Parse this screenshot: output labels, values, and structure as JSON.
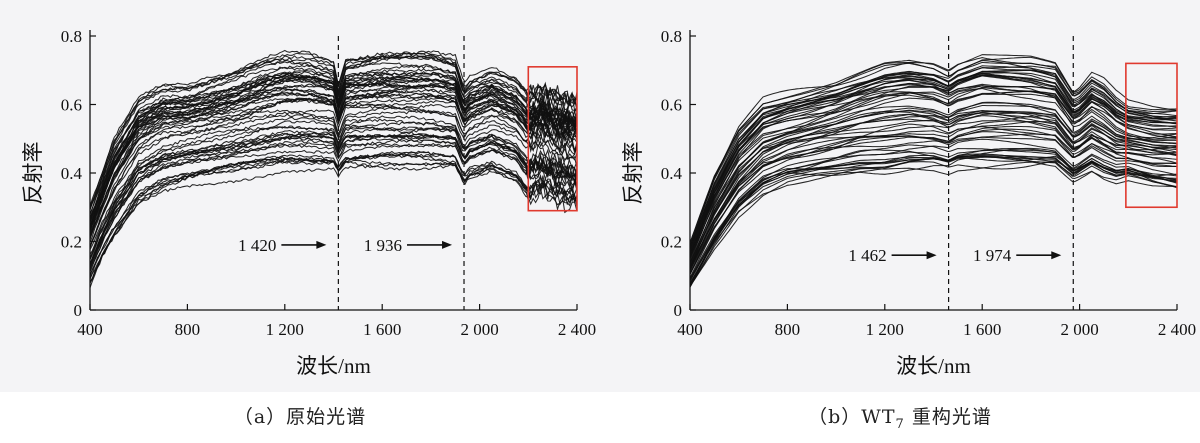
{
  "chart_data": [
    {
      "type": "line",
      "caption": "（a）原始光谱",
      "xlabel": "波长/nm",
      "ylabel": "反射率",
      "xlim": [
        400,
        2400
      ],
      "ylim": [
        0,
        0.8
      ],
      "xticks": [
        400,
        800,
        1200,
        1600,
        2000,
        2400
      ],
      "xtick_labels": [
        "400",
        "800",
        "1 200",
        "1 600",
        "2 000",
        "2 400"
      ],
      "yticks": [
        0,
        0.2,
        0.4,
        0.6,
        0.8
      ],
      "ytick_labels": [
        "0",
        "0.2",
        "0.4",
        "0.6",
        "0.8"
      ],
      "vlines": [
        1420,
        1936
      ],
      "annotations": [
        {
          "text": "1 420",
          "x": 1420,
          "y": 0.19
        },
        {
          "text": "1 936",
          "x": 1936,
          "y": 0.19
        }
      ],
      "highlight_box": {
        "x": [
          2200,
          2400
        ],
        "y": [
          0.29,
          0.71
        ],
        "color": "#e03a2f"
      },
      "series_count": 60,
      "envelope": {
        "x": [
          400,
          450,
          500,
          600,
          700,
          800,
          900,
          1000,
          1100,
          1200,
          1300,
          1400,
          1420,
          1450,
          1600,
          1800,
          1900,
          1936,
          1960,
          2050,
          2150,
          2200,
          2250,
          2300,
          2400
        ],
        "upper": [
          0.3,
          0.4,
          0.5,
          0.62,
          0.66,
          0.66,
          0.68,
          0.7,
          0.73,
          0.75,
          0.75,
          0.73,
          0.66,
          0.74,
          0.76,
          0.76,
          0.74,
          0.66,
          0.68,
          0.71,
          0.68,
          0.64,
          0.66,
          0.64,
          0.62
        ],
        "lower": [
          0.06,
          0.14,
          0.2,
          0.3,
          0.34,
          0.36,
          0.37,
          0.38,
          0.39,
          0.4,
          0.4,
          0.4,
          0.38,
          0.4,
          0.4,
          0.4,
          0.4,
          0.35,
          0.37,
          0.39,
          0.36,
          0.31,
          0.33,
          0.31,
          0.29
        ]
      },
      "noise": 0.008,
      "noise_start": 2200
    },
    {
      "type": "line",
      "caption": "（b）WT7 重构光谱",
      "xlabel": "波长/nm",
      "ylabel": "反射率",
      "xlim": [
        400,
        2400
      ],
      "ylim": [
        0,
        0.8
      ],
      "xticks": [
        400,
        800,
        1200,
        1600,
        2000,
        2400
      ],
      "xtick_labels": [
        "400",
        "800",
        "1 200",
        "1 600",
        "2 000",
        "2 400"
      ],
      "yticks": [
        0,
        0.2,
        0.4,
        0.6,
        0.8
      ],
      "ytick_labels": [
        "0",
        "0.2",
        "0.4",
        "0.6",
        "0.8"
      ],
      "vlines": [
        1462,
        1974
      ],
      "annotations": [
        {
          "text": "1 462",
          "x": 1462,
          "y": 0.16
        },
        {
          "text": "1 974",
          "x": 1974,
          "y": 0.16
        }
      ],
      "highlight_box": {
        "x": [
          2190,
          2400
        ],
        "y": [
          0.3,
          0.72
        ],
        "color": "#e03a2f"
      },
      "series_count": 60,
      "envelope": {
        "x": [
          400,
          450,
          500,
          600,
          700,
          800,
          900,
          1000,
          1100,
          1200,
          1300,
          1400,
          1462,
          1500,
          1600,
          1800,
          1900,
          1974,
          2000,
          2050,
          2100,
          2150,
          2200,
          2300,
          2400
        ],
        "upper": [
          0.2,
          0.3,
          0.4,
          0.54,
          0.62,
          0.64,
          0.66,
          0.68,
          0.71,
          0.74,
          0.75,
          0.74,
          0.72,
          0.74,
          0.77,
          0.76,
          0.74,
          0.65,
          0.66,
          0.7,
          0.68,
          0.64,
          0.61,
          0.6,
          0.6
        ],
        "lower": [
          0.06,
          0.12,
          0.18,
          0.28,
          0.34,
          0.37,
          0.38,
          0.39,
          0.4,
          0.4,
          0.41,
          0.41,
          0.4,
          0.41,
          0.41,
          0.41,
          0.41,
          0.37,
          0.38,
          0.4,
          0.38,
          0.37,
          0.38,
          0.36,
          0.35
        ]
      },
      "noise": 0.0,
      "noise_start": 2400
    }
  ]
}
